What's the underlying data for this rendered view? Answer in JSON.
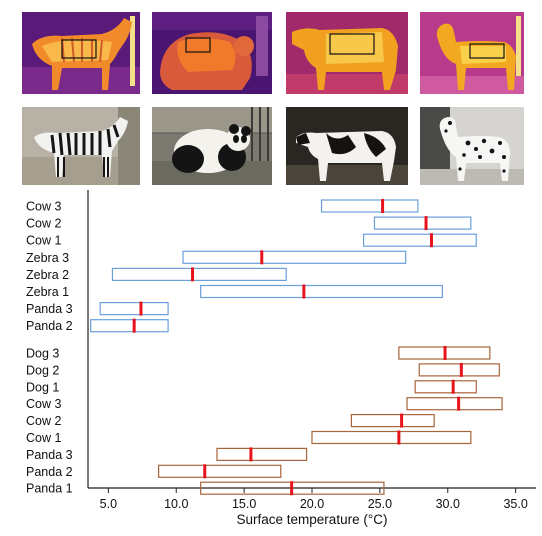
{
  "figure": {
    "thermal_images": [
      {
        "subject": "zebra",
        "icon": "thermal-zebra-image"
      },
      {
        "subject": "panda",
        "icon": "thermal-panda-image"
      },
      {
        "subject": "cow",
        "icon": "thermal-cow-image"
      },
      {
        "subject": "dog",
        "icon": "thermal-dog-image"
      }
    ],
    "photos": [
      {
        "subject": "zebra",
        "icon": "zebra-photo"
      },
      {
        "subject": "panda",
        "icon": "panda-photo"
      },
      {
        "subject": "cow",
        "icon": "cow-photo"
      },
      {
        "subject": "dog",
        "icon": "dog-photo"
      }
    ]
  },
  "colors": {
    "striped_box": "#6a9fdc",
    "unstriped_box": "#a8643a",
    "median": "#e8141c",
    "axis": "#222222"
  },
  "chart_data": {
    "type": "box",
    "title": "",
    "xlabel": "Surface temperature (°C)",
    "ylabel": "",
    "xlim": [
      3.5,
      36.5
    ],
    "xticks": [
      "5.0",
      "10.0",
      "15.0",
      "20.0",
      "25.0",
      "30.0",
      "35.0"
    ],
    "groups": [
      {
        "name": "top",
        "color": "#6a9fdc",
        "series": [
          {
            "label": "Cow 3",
            "min": 20.7,
            "median": 25.2,
            "max": 27.8
          },
          {
            "label": "Cow 2",
            "min": 24.6,
            "median": 28.4,
            "max": 31.7
          },
          {
            "label": "Cow 1",
            "min": 23.8,
            "median": 28.8,
            "max": 32.1
          },
          {
            "label": "Zebra 3",
            "min": 10.5,
            "median": 16.3,
            "max": 26.9
          },
          {
            "label": "Zebra 2",
            "min": 5.3,
            "median": 11.2,
            "max": 18.1
          },
          {
            "label": "Zebra 1",
            "min": 11.8,
            "median": 19.4,
            "max": 29.6
          },
          {
            "label": "Panda 3",
            "min": 4.4,
            "median": 7.4,
            "max": 9.4
          },
          {
            "label": "Panda 2",
            "min": 3.7,
            "median": 6.9,
            "max": 9.4
          }
        ]
      },
      {
        "name": "bottom",
        "color": "#a8643a",
        "series": [
          {
            "label": "Dog 3",
            "min": 26.4,
            "median": 29.8,
            "max": 33.1
          },
          {
            "label": "Dog 2",
            "min": 27.9,
            "median": 31.0,
            "max": 33.8
          },
          {
            "label": "Dog 1",
            "min": 27.6,
            "median": 30.4,
            "max": 32.1
          },
          {
            "label": "Cow 3",
            "min": 27.0,
            "median": 30.8,
            "max": 34.0
          },
          {
            "label": "Cow 2",
            "min": 22.9,
            "median": 26.6,
            "max": 29.0
          },
          {
            "label": "Cow 1",
            "min": 20.0,
            "median": 26.4,
            "max": 31.7
          },
          {
            "label": "Panda 3",
            "min": 13.0,
            "median": 15.5,
            "max": 19.6
          },
          {
            "label": "Panda 2",
            "min": 8.7,
            "median": 12.1,
            "max": 17.7
          },
          {
            "label": "Panda 1",
            "min": 11.8,
            "median": 18.5,
            "max": 25.3
          }
        ]
      }
    ]
  }
}
